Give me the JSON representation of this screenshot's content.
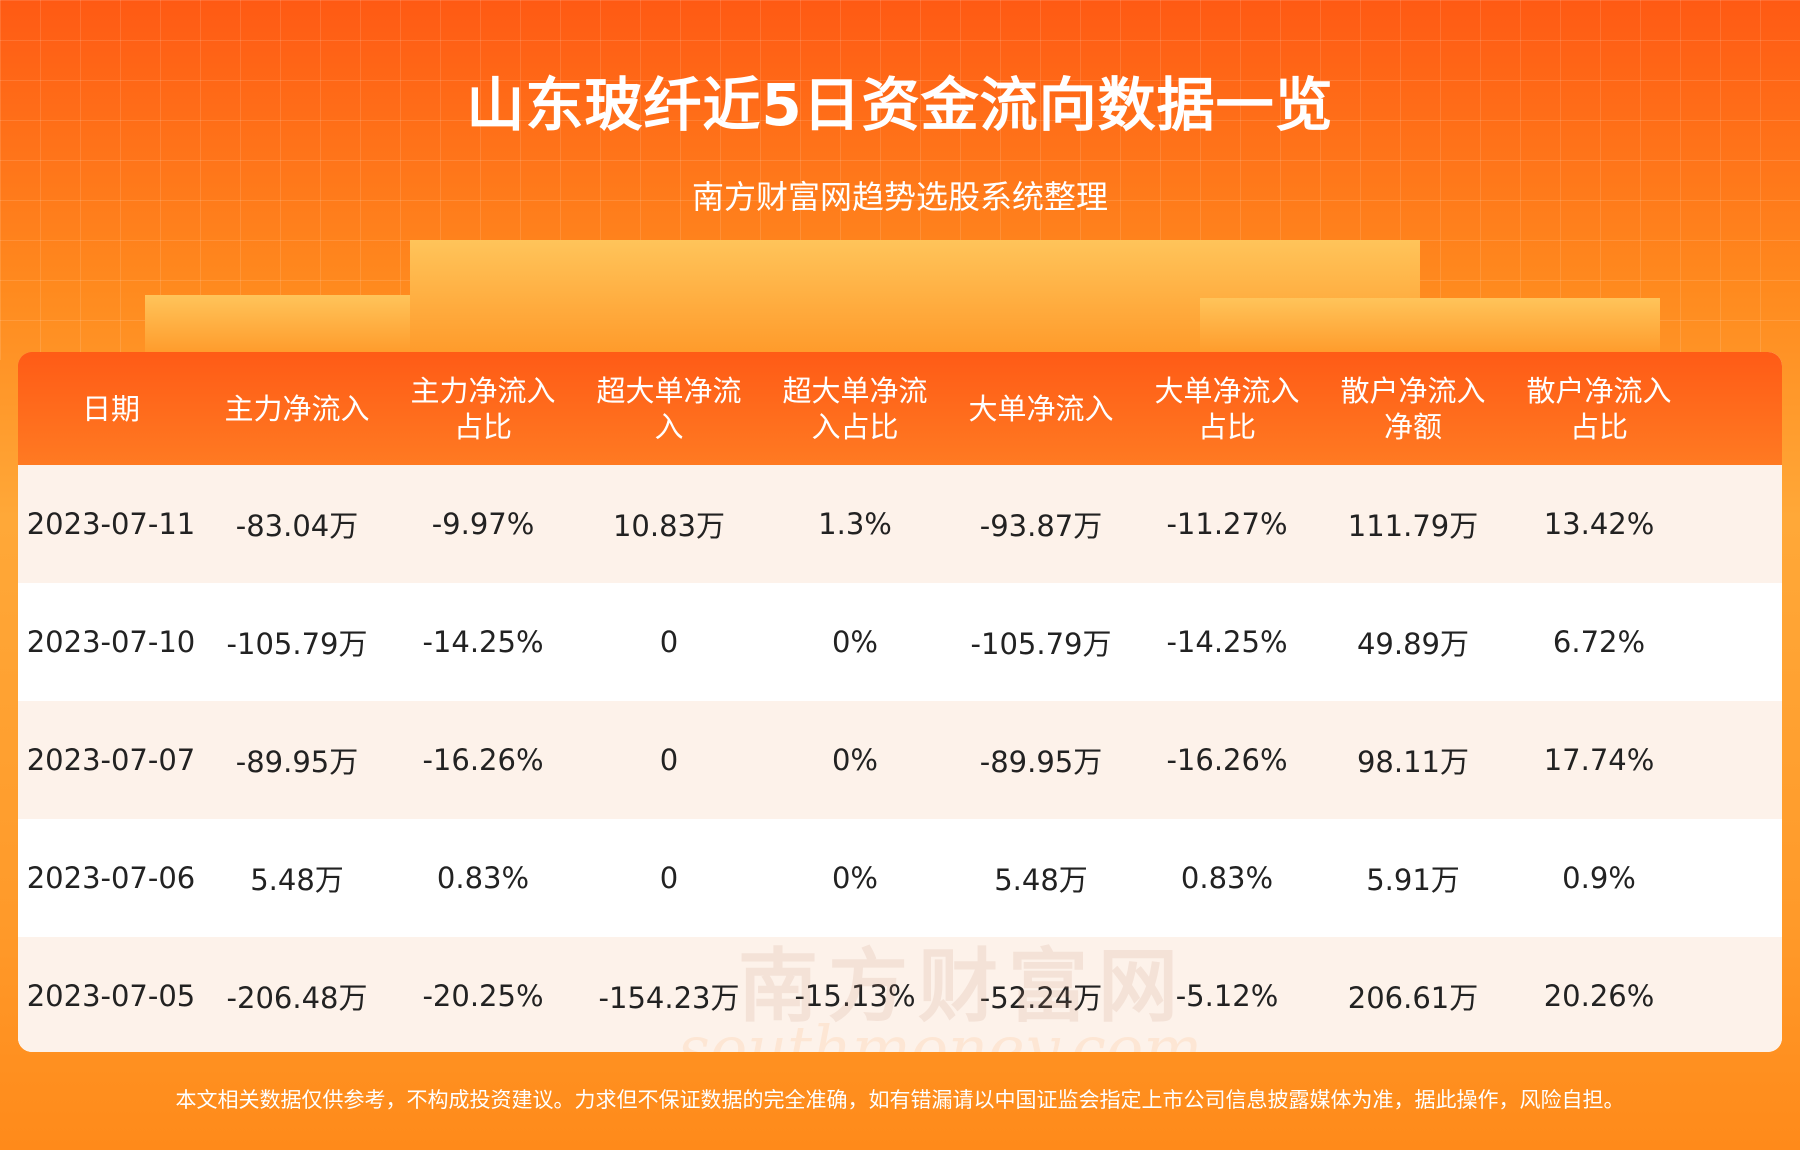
{
  "header": {
    "title": "山东玻纤近5日资金流向数据一览",
    "subtitle": "南方财富网趋势选股系统整理"
  },
  "table": {
    "columns": [
      "日期",
      "主力净流入",
      "主力净流入占比",
      "超大单净流入",
      "超大单净流入占比",
      "大单净流入",
      "大单净流入占比",
      "散户净流入净额",
      "散户净流入占比"
    ],
    "rows": [
      [
        "2023-07-11",
        "-83.04万",
        "-9.97%",
        "10.83万",
        "1.3%",
        "-93.87万",
        "-11.27%",
        "111.79万",
        "13.42%"
      ],
      [
        "2023-07-10",
        "-105.79万",
        "-14.25%",
        "0",
        "0%",
        "-105.79万",
        "-14.25%",
        "49.89万",
        "6.72%"
      ],
      [
        "2023-07-07",
        "-89.95万",
        "-16.26%",
        "0",
        "0%",
        "-89.95万",
        "-16.26%",
        "98.11万",
        "17.74%"
      ],
      [
        "2023-07-06",
        "5.48万",
        "0.83%",
        "0",
        "0%",
        "5.48万",
        "0.83%",
        "5.91万",
        "0.9%"
      ],
      [
        "2023-07-05",
        "-206.48万",
        "-20.25%",
        "-154.23万",
        "-15.13%",
        "-52.24万",
        "-5.12%",
        "206.61万",
        "20.26%"
      ]
    ]
  },
  "watermark": {
    "brand": "南方财富网",
    "site": "southmoney.com"
  },
  "footer": {
    "disclaimer": "本文相关数据仅供参考，不构成投资建议。力求但不保证数据的完全准确，如有错漏请以中国证监会指定上市公司信息披露媒体为准，据此操作，风险自担。"
  }
}
